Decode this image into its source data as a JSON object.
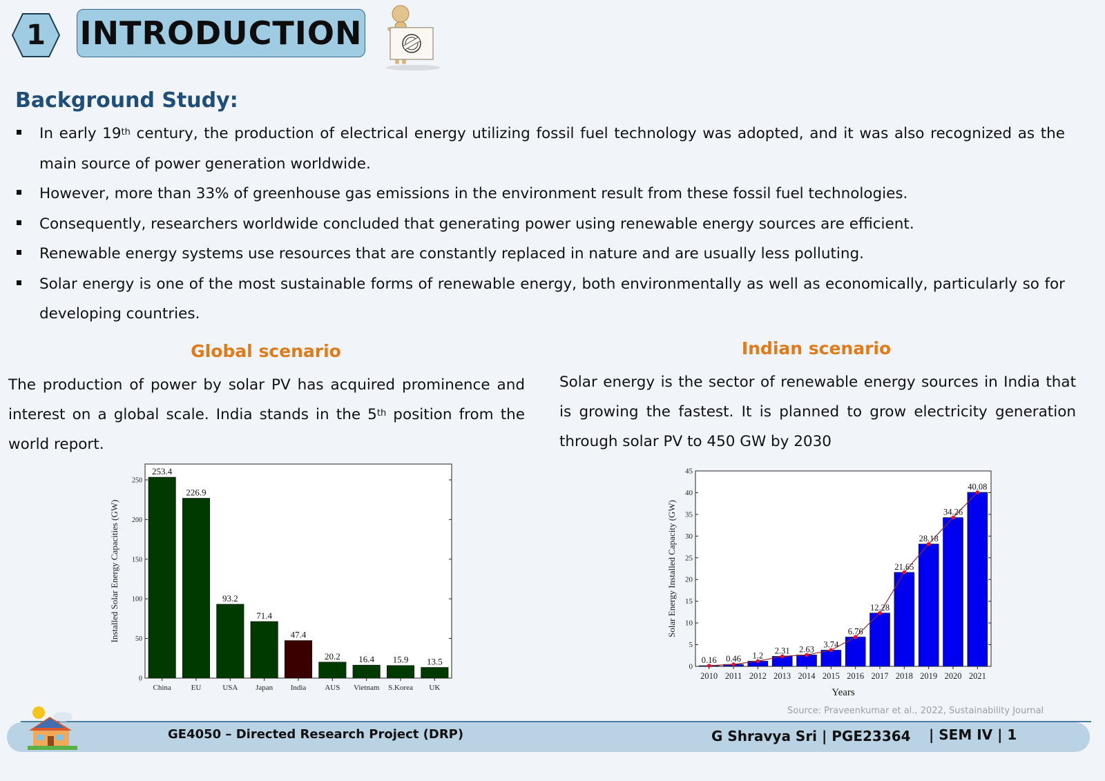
{
  "header": {
    "number": "1",
    "title": "INTRODUCTION"
  },
  "background": {
    "heading": "Background Study:",
    "bullets": [
      {
        "pre": "In early 19",
        "sup": "th",
        "post": " century, the production of electrical energy utilizing fossil fuel technology was adopted, and it was also recognized as the main source of power generation worldwide."
      },
      {
        "pre": "However, more than 33% of greenhouse gas emissions in the environment result from these fossil fuel technologies.",
        "sup": "",
        "post": ""
      },
      {
        "pre": "Consequently, researchers worldwide concluded that generating power using renewable energy sources are efficient.",
        "sup": "",
        "post": ""
      },
      {
        "pre": "Renewable energy systems use resources that are constantly replaced in nature and are usually less polluting.",
        "sup": "",
        "post": ""
      },
      {
        "pre": "Solar energy is one of the most sustainable forms of renewable energy, both environmentally as well as economically, particularly so for developing countries.",
        "sup": "",
        "post": ""
      }
    ]
  },
  "global": {
    "heading": "Global scenario",
    "text_pre": "The production of power by solar PV has acquired prominence and interest on a global scale. India stands in the 5",
    "text_sup": "th",
    "text_post": " position from the world report."
  },
  "indian": {
    "heading": "Indian scenario",
    "text": "Solar energy is the sector of renewable energy sources in India that is growing the fastest. It is planned to grow electricity generation through solar PV to 450 GW by 2030"
  },
  "source": "Source:  Praveenkumar et al., 2022, Sustainability Journal",
  "footer": {
    "course": "GE4050 –  Directed Research Project (DRP)",
    "author": "G Shravya Sri | PGE23364",
    "sem": "| SEM IV | 1"
  },
  "colors": {
    "title_box": "#9fcbe3",
    "heading_blue": "#1f4e79",
    "scenario_orange": "#e07b1a",
    "bar_green": "#003a00",
    "bar_india": "#3a0000",
    "bar_blue": "#0000f0",
    "point_red": "#e8102a"
  },
  "chart_data": [
    {
      "type": "bar",
      "title": "",
      "xlabel": "",
      "ylabel": "Installed Solar Energy Capacities (GW)",
      "categories": [
        "China",
        "EU",
        "USA",
        "Japan",
        "India",
        "AUS",
        "Vietnam",
        "S.Korea",
        "UK"
      ],
      "values": [
        253.4,
        226.9,
        93.2,
        71.4,
        47.4,
        20.2,
        16.4,
        15.9,
        13.5
      ],
      "labels": [
        "253.4",
        "226.9",
        "93.2",
        "71.4",
        "47.4",
        "20.2",
        "16.4",
        "15.9",
        "13.5"
      ],
      "highlight": "India",
      "ylim": [
        0,
        270
      ],
      "yticks": [
        0,
        50,
        100,
        150,
        200,
        250
      ],
      "grid": false
    },
    {
      "type": "bar",
      "title": "",
      "xlabel": "Years",
      "ylabel": "Solar Energy Installed Capacity (GW)",
      "categories": [
        "2010",
        "2011",
        "2012",
        "2013",
        "2014",
        "2015",
        "2016",
        "2017",
        "2018",
        "2019",
        "2020",
        "2021"
      ],
      "values": [
        0.16,
        0.46,
        1.2,
        2.31,
        2.63,
        3.74,
        6.76,
        12.28,
        21.65,
        28.18,
        34.26,
        40.08
      ],
      "labels": [
        "0.16",
        "0.46",
        "1.2",
        "2.31",
        "2.63",
        "3.74",
        "6.76",
        "12.28",
        "21.65",
        "28.18",
        "34.26",
        "40.08"
      ],
      "overlay_line": true,
      "ylim": [
        0,
        45
      ],
      "yticks": [
        0,
        5,
        10,
        15,
        20,
        25,
        30,
        35,
        40,
        45
      ],
      "grid": false
    }
  ]
}
